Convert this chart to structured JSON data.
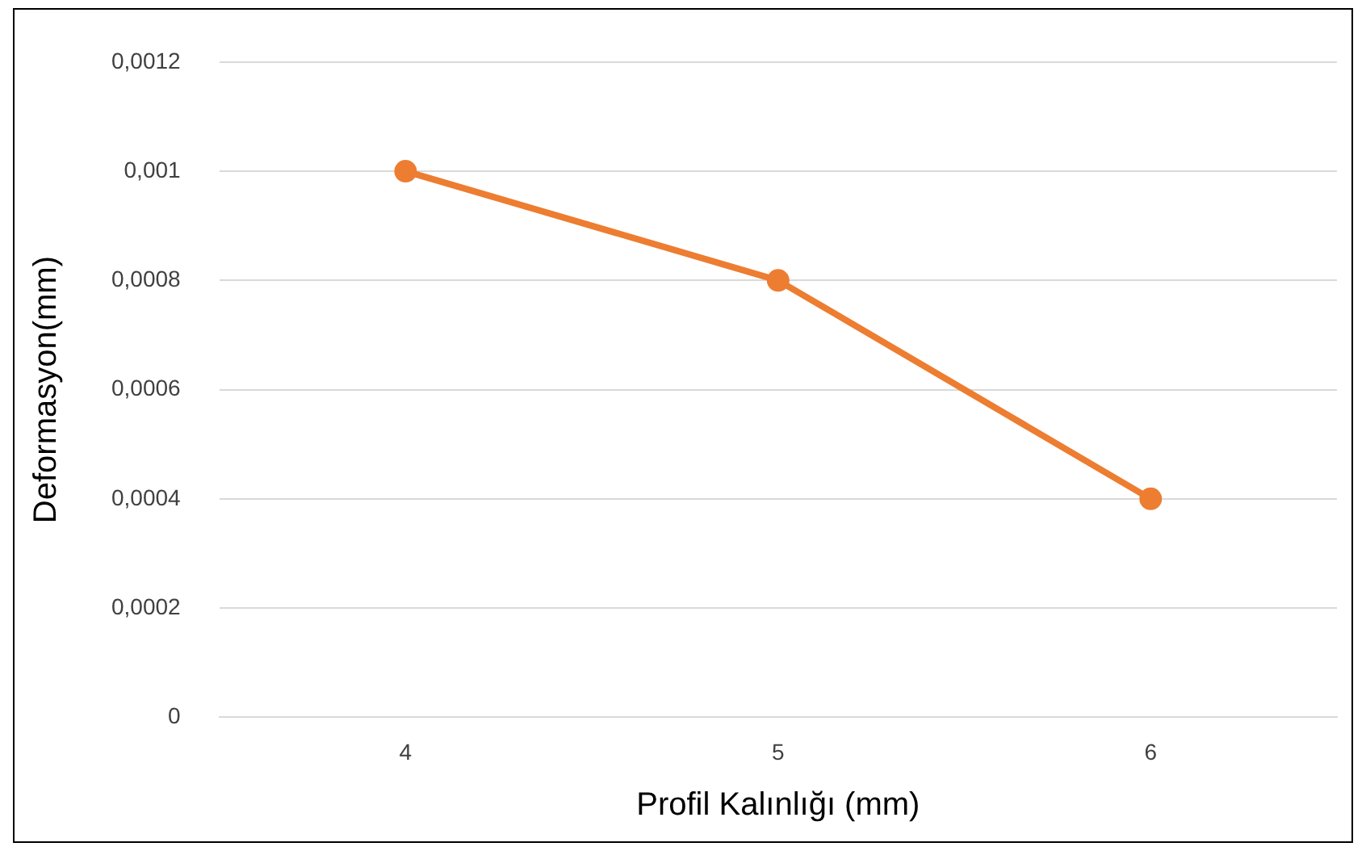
{
  "chart_data": {
    "type": "line",
    "xlabel": "Profil Kalınlığı (mm)",
    "ylabel": "Deformasyon(mm)",
    "categories": [
      "4",
      "5",
      "6"
    ],
    "series": [
      {
        "color": "#ed7d31",
        "values": [
          0.001,
          0.0008,
          0.0004
        ]
      }
    ],
    "ylim": [
      0,
      0.0012
    ],
    "yticks": [
      0,
      {
        "value": 0.0002,
        "label": "0,0002"
      },
      {
        "value": 0.0004,
        "label": "0,0004"
      },
      {
        "value": 0.0006,
        "label": "0,0006"
      },
      {
        "value": 0.0008,
        "label": "0,0008"
      },
      {
        "value": 0.001,
        "label": "0,001"
      },
      {
        "value": 0.0012,
        "label": "0,0012"
      }
    ],
    "grid": "y",
    "marker": "circle",
    "line_style": "solid",
    "legend": false
  }
}
